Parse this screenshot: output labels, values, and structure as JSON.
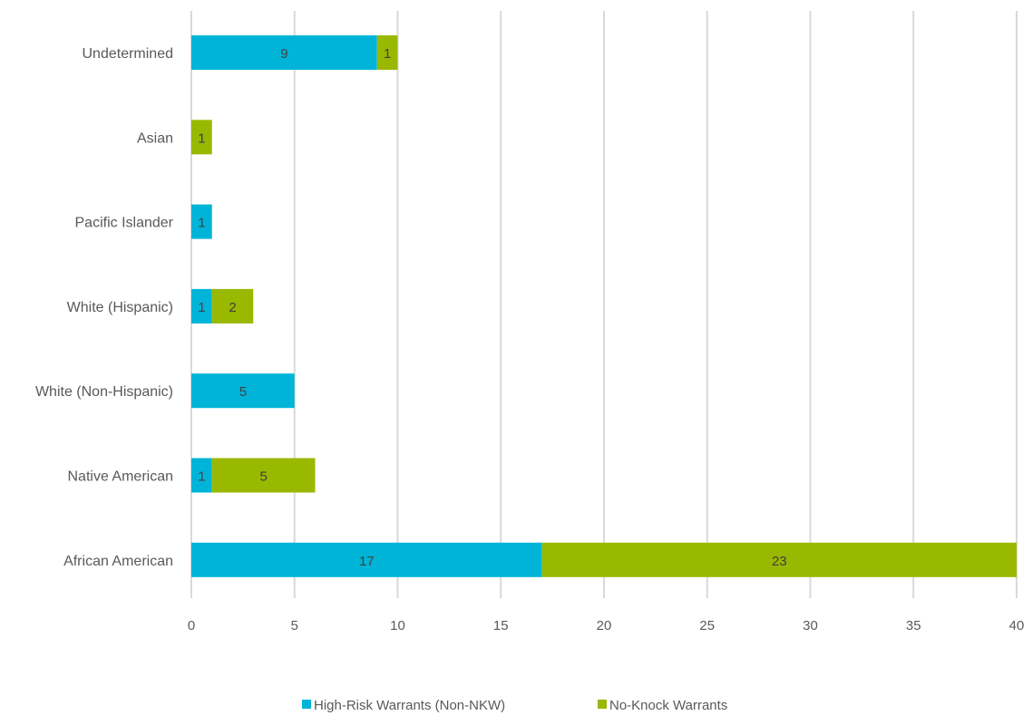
{
  "chart_data": {
    "type": "bar",
    "orientation": "horizontal",
    "stacked": true,
    "categories": [
      "Undetermined",
      "Asian",
      "Pacific Islander",
      "White (Hispanic)",
      "White (Non-Hispanic)",
      "Native American",
      "African American"
    ],
    "series": [
      {
        "name": "High-Risk Warrants (Non-NKW)",
        "color": "#00b4d8",
        "values": [
          9,
          0,
          1,
          1,
          5,
          1,
          17
        ]
      },
      {
        "name": "No-Knock Warrants",
        "color": "#99b800",
        "values": [
          1,
          1,
          0,
          2,
          0,
          5,
          23
        ]
      }
    ],
    "xlim": [
      0,
      40
    ],
    "xticks": [
      0,
      5,
      10,
      15,
      20,
      25,
      30,
      35,
      40
    ],
    "grid": true,
    "legend_position": "bottom-center",
    "title": "",
    "xlabel": "",
    "ylabel": ""
  }
}
